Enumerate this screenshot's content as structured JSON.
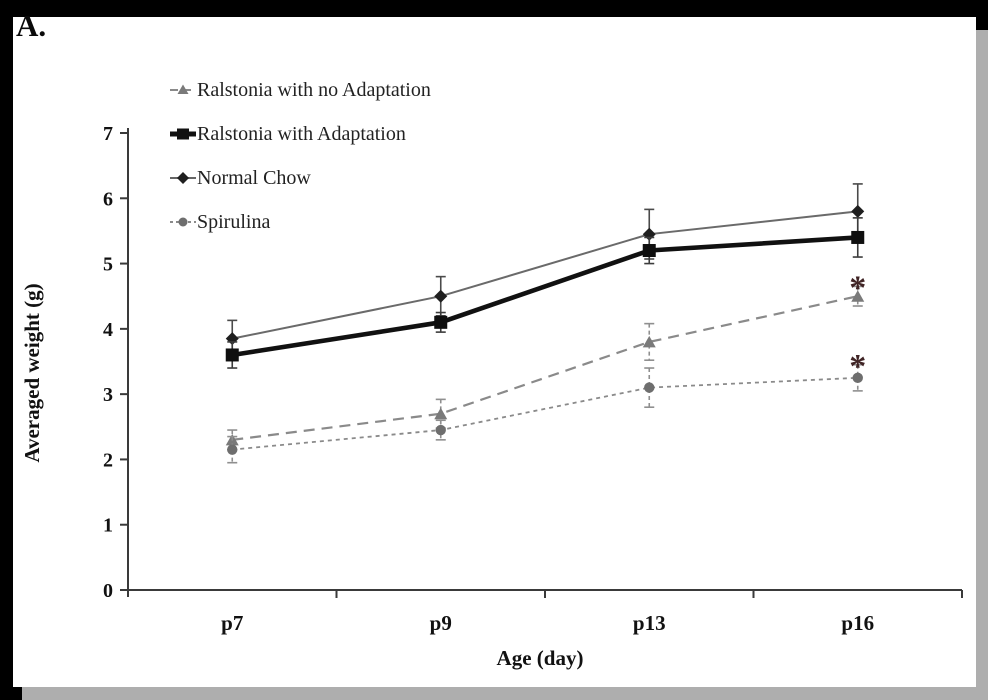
{
  "panel_label": "A.",
  "colors": {
    "background": "#ffffff",
    "frame_black": "#000000",
    "scan_edge_gray": "#aeaeae",
    "axis": "#3a3a3a",
    "asterisk": "#402425"
  },
  "chart_data": {
    "type": "line",
    "categories": [
      "p7",
      "p9",
      "p13",
      "p16"
    ],
    "xlabel": "Age (day)",
    "ylabel": "Averaged weight (g)",
    "ylim": [
      0,
      7
    ],
    "yticks": [
      "0",
      "1",
      "2",
      "3",
      "4",
      "5",
      "6",
      "7"
    ],
    "grid": false,
    "legend_position": "top-left-inside",
    "series": [
      {
        "name": "Ralstonia with no Adaptation",
        "marker": "triangle",
        "marker_color": "#7a7a7a",
        "line": "dashed",
        "line_color": "#8a8a8a",
        "error_style": "dashed",
        "error_color": "#8f8f8f",
        "values": [
          2.3,
          2.7,
          3.8,
          4.5
        ],
        "errors": [
          0.15,
          0.22,
          0.28,
          0.15
        ]
      },
      {
        "name": "Ralstonia with Adaptation",
        "marker": "square",
        "marker_color": "#0f0f0f",
        "line": "solid-thick",
        "line_color": "#111111",
        "error_style": "solid",
        "error_color": "#3c3c3c",
        "values": [
          3.6,
          4.1,
          5.2,
          5.4
        ],
        "errors": [
          0.2,
          0.15,
          0.2,
          0.3
        ]
      },
      {
        "name": "Normal Chow",
        "marker": "diamond",
        "marker_color": "#1f1f1f",
        "line": "solid-thin",
        "line_color": "#6a6a6a",
        "error_style": "solid",
        "error_color": "#4a4a4a",
        "values": [
          3.85,
          4.5,
          5.45,
          5.8
        ],
        "errors": [
          0.28,
          0.3,
          0.38,
          0.42
        ]
      },
      {
        "name": "Spirulina",
        "marker": "circle",
        "marker_color": "#6e6e6e",
        "line": "dotted",
        "line_color": "#8a8a8a",
        "error_style": "dashed",
        "error_color": "#8f8f8f",
        "values": [
          2.15,
          2.45,
          3.1,
          3.25
        ],
        "errors": [
          0.2,
          0.15,
          0.3,
          0.2
        ]
      }
    ],
    "annotations": [
      {
        "text": "*",
        "series": "Ralstonia with no Adaptation",
        "category": "p16",
        "color": "#402425"
      },
      {
        "text": "*",
        "series": "Spirulina",
        "category": "p16",
        "color": "#402425"
      }
    ]
  }
}
